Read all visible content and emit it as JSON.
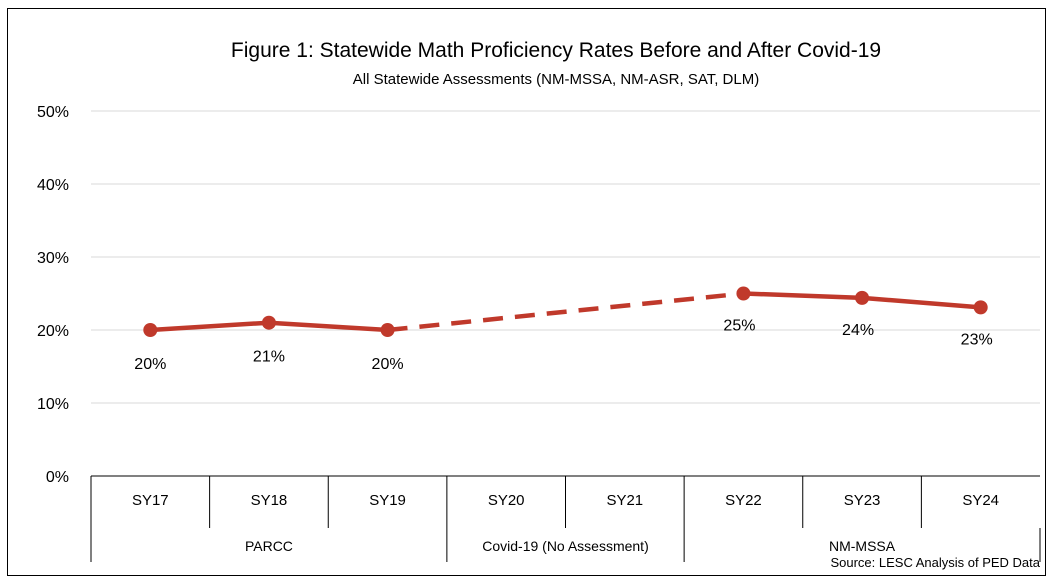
{
  "chart_data": {
    "type": "line",
    "title": "Figure 1: Statewide Math Proficiency Rates Before and After Covid-19",
    "subtitle": "All Statewide Assessments (NM-MSSA, NM-ASR, SAT, DLM)",
    "categories": [
      "SY17",
      "SY18",
      "SY19",
      "SY20",
      "SY21",
      "SY22",
      "SY23",
      "SY24"
    ],
    "series": [
      {
        "color": "#c0392b",
        "values": [
          20,
          21,
          20,
          null,
          null,
          25,
          24.4,
          23.1
        ],
        "data_labels": [
          "20%",
          "21%",
          "20%",
          "",
          "",
          "25%",
          "24%",
          "23%"
        ]
      }
    ],
    "connector": {
      "style": "dashed",
      "from": "SY19",
      "to": "SY22"
    },
    "groups": [
      {
        "label": "PARCC",
        "categories": [
          "SY17",
          "SY18",
          "SY19"
        ]
      },
      {
        "label": "Covid-19 (No Assessment)",
        "categories": [
          "SY20",
          "SY21"
        ]
      },
      {
        "label": "NM-MSSA",
        "categories": [
          "SY22",
          "SY23",
          "SY24"
        ]
      }
    ],
    "yticks": [
      "0%",
      "10%",
      "20%",
      "30%",
      "40%",
      "50%"
    ],
    "ylim": [
      0,
      50
    ],
    "grid": true,
    "xlabel": "",
    "ylabel": "",
    "source": "Source: LESC Analysis of PED Data"
  }
}
